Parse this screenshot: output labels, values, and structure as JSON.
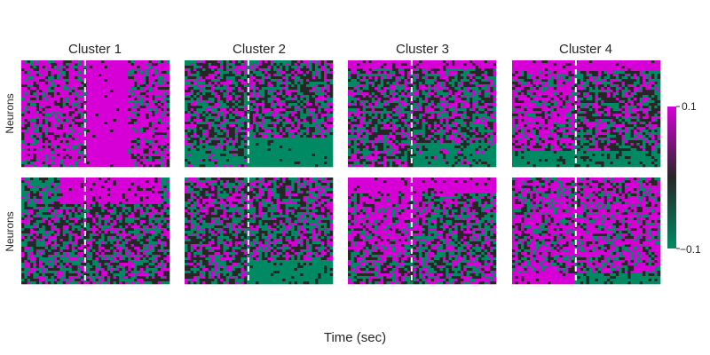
{
  "chart_data": {
    "type": "heatmap",
    "xlabel": "Time (sec)",
    "ylabel": "Neurons",
    "colormap": {
      "low": "#008a64",
      "mid": "#262626",
      "high": "#d600d6"
    },
    "colorbar": {
      "min": -0.1,
      "max": 0.1,
      "tick_labels": [
        "0.1",
        "−0.1"
      ]
    },
    "event_marker": {
      "style": "dashed",
      "color": "#ffffff",
      "position_fraction": 0.43
    },
    "panels": [
      {
        "title": "Cluster 1",
        "row": 0,
        "col": 0,
        "pattern": "mostly-positive-vertical-stripes"
      },
      {
        "title": "Cluster 2",
        "row": 0,
        "col": 1,
        "pattern": "negative-after-event-bottom"
      },
      {
        "title": "Cluster 3",
        "row": 0,
        "col": 2,
        "pattern": "mixed-noise-positive-top"
      },
      {
        "title": "Cluster 4",
        "row": 0,
        "col": 3,
        "pattern": "positive-before-event-top"
      },
      {
        "title": "",
        "row": 1,
        "col": 0,
        "pattern": "block-stripes"
      },
      {
        "title": "",
        "row": 1,
        "col": 1,
        "pattern": "mixed-noise-negative-bottom"
      },
      {
        "title": "",
        "row": 1,
        "col": 2,
        "pattern": "positive-top-left"
      },
      {
        "title": "",
        "row": 1,
        "col": 3,
        "pattern": "positive-noise-bottom-band"
      }
    ]
  }
}
